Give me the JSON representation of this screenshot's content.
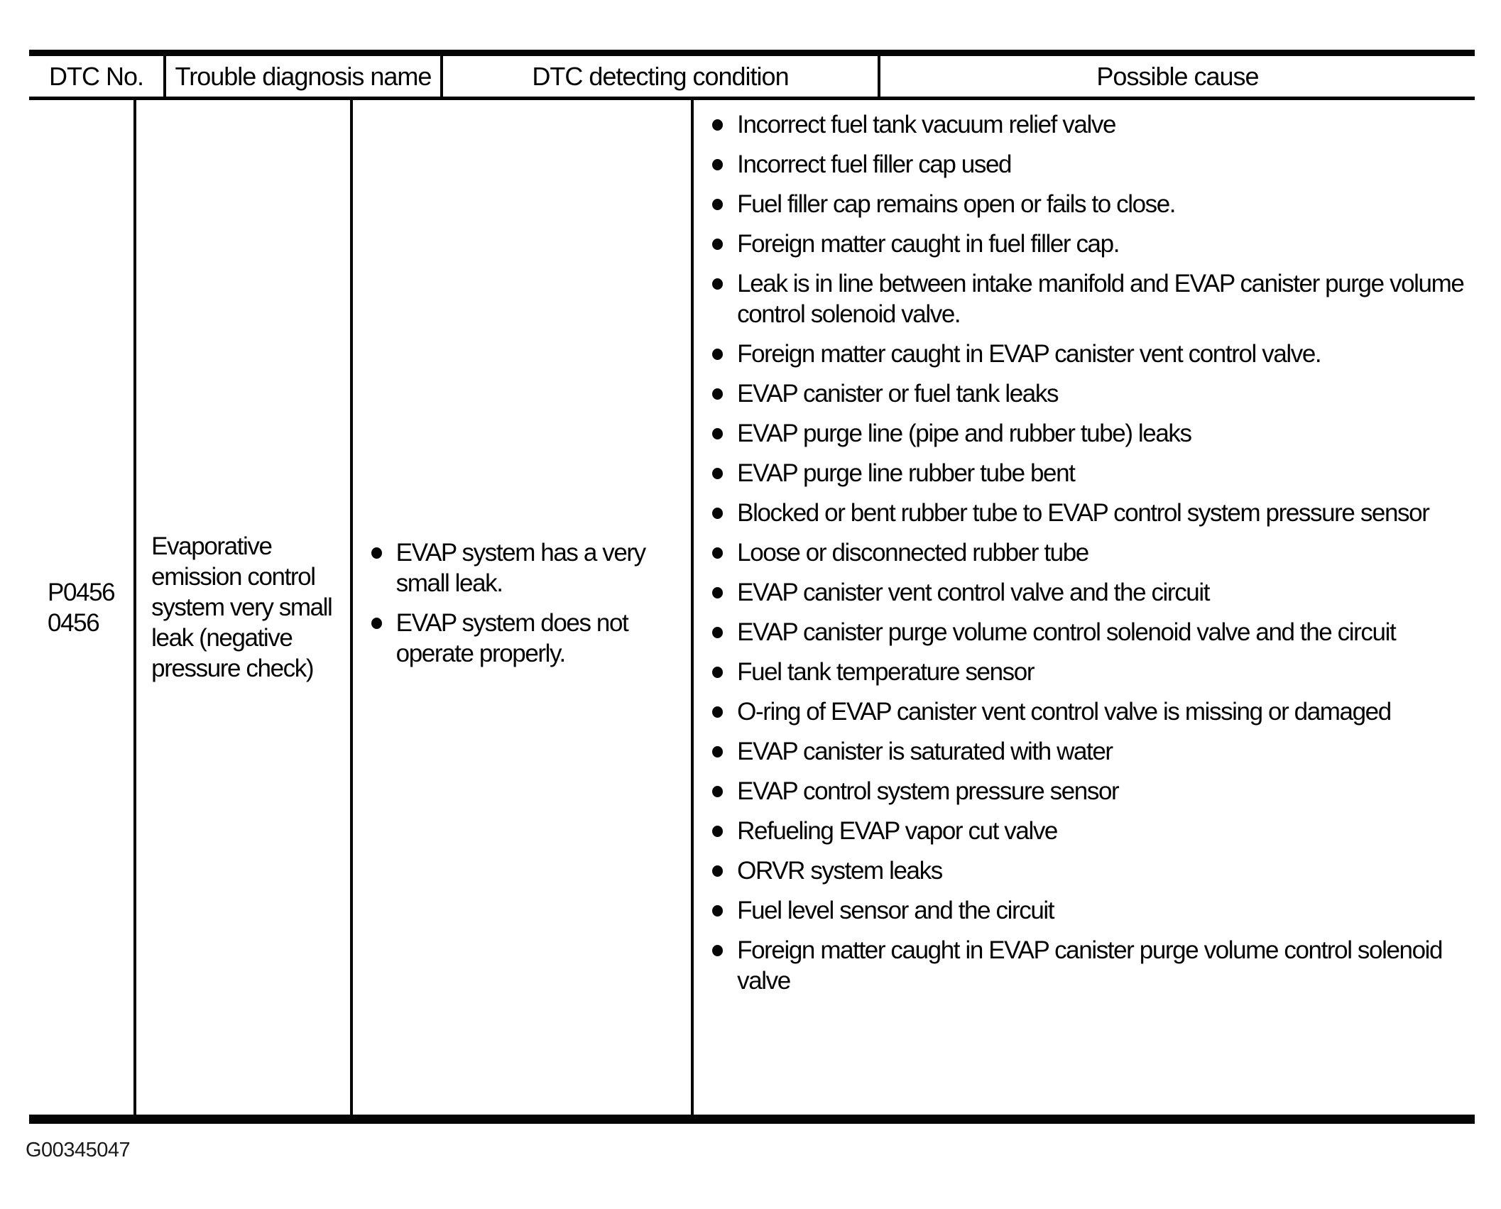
{
  "page": {
    "background": "#ffffff",
    "ink": "#050505"
  },
  "figure_label": "G00345047",
  "table": {
    "columns": [
      "DTC No.",
      "Trouble diagnosis name",
      "DTC detecting condition",
      "Possible cause"
    ],
    "row": {
      "dtc_no": "P0456\n0456",
      "trouble_diagnosis_name": "Evaporative emission control system very small leak (negative pressure check)",
      "dtc_detecting_conditions": [
        "EVAP system has a very small leak.",
        "EVAP system does not operate properly."
      ],
      "possible_causes": [
        "Incorrect fuel tank vacuum relief valve",
        "Incorrect fuel filler cap used",
        "Fuel filler cap remains open or fails to close.",
        "Foreign matter caught in fuel filler cap.",
        "Leak is in line between intake manifold and EVAP canister purge volume control solenoid valve.",
        "Foreign matter caught in EVAP canister vent control valve.",
        "EVAP canister or fuel tank leaks",
        "EVAP purge line (pipe and rubber tube) leaks",
        "EVAP purge line rubber tube bent",
        "Blocked or bent rubber tube to EVAP control system pressure sensor",
        "Loose or disconnected rubber tube",
        "EVAP canister vent control valve and the circuit",
        "EVAP canister purge volume control solenoid valve and the circuit",
        "Fuel tank temperature sensor",
        "O-ring of EVAP canister vent control valve is missing or damaged",
        "EVAP canister is saturated with water",
        "EVAP control system pressure sensor",
        "Refueling EVAP vapor cut valve",
        "ORVR system leaks",
        "Fuel level sensor and the circuit",
        "Foreign matter caught in EVAP canister purge volume control solenoid valve"
      ]
    }
  }
}
